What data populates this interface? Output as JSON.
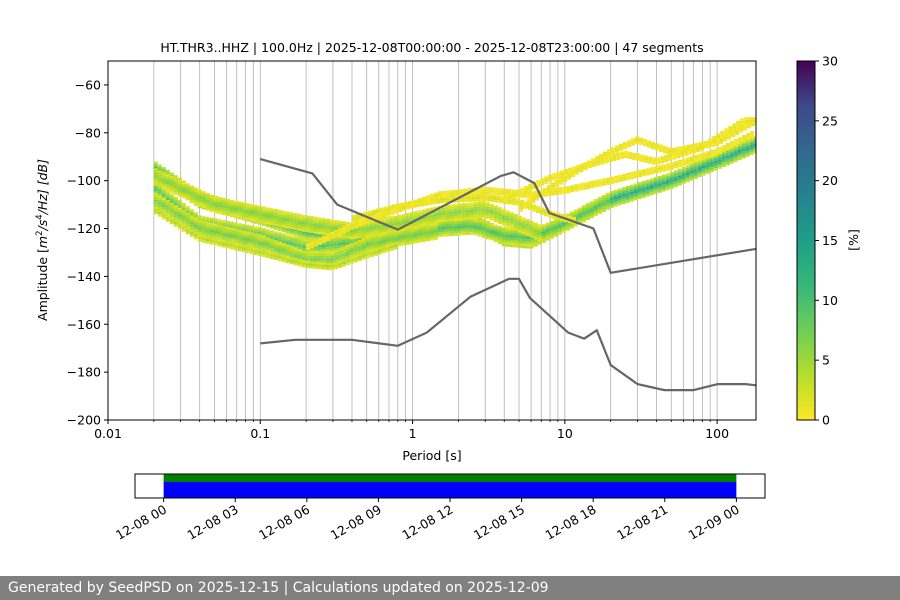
{
  "chart_data": [
    {
      "type": "heatmap",
      "title": "HT.THR3..HHZ | 100.0Hz | 2025-12-08T00:00:00 - 2025-12-08T23:00:00 | 47 segments",
      "xlabel": "Period [s]",
      "ylabel": "Amplitude [m²/s⁴/Hz] [dB]",
      "ylabel_parts": {
        "pre": "Amplitude [",
        "m": "m",
        "sup2": "2",
        "slash_s": "/s",
        "sup4": "4",
        "rest": "/Hz] [dB]"
      },
      "x_scale": "log",
      "xlim": [
        0.01,
        180
      ],
      "ylim": [
        -200,
        -50
      ],
      "x_ticks": [
        {
          "value": 0.01,
          "label": "0.01"
        },
        {
          "value": 0.1,
          "label": "0.1"
        },
        {
          "value": 1,
          "label": "1"
        },
        {
          "value": 10,
          "label": "10"
        },
        {
          "value": 100,
          "label": "100"
        }
      ],
      "y_ticks": [
        {
          "value": -60,
          "label": "−60"
        },
        {
          "value": -80,
          "label": "−80"
        },
        {
          "value": -100,
          "label": "−100"
        },
        {
          "value": -120,
          "label": "−120"
        },
        {
          "value": -140,
          "label": "−140"
        },
        {
          "value": -160,
          "label": "−160"
        },
        {
          "value": -180,
          "label": "−180"
        },
        {
          "value": -200,
          "label": "−200"
        }
      ],
      "grid": "vertical log grid",
      "colorbar": {
        "label": "[%]",
        "range": [
          0,
          30
        ],
        "colormap": "viridis_r",
        "ticks": [
          {
            "value": 0,
            "label": "0"
          },
          {
            "value": 5,
            "label": "5"
          },
          {
            "value": 10,
            "label": "10"
          },
          {
            "value": 15,
            "label": "15"
          },
          {
            "value": 20,
            "label": "20"
          },
          {
            "value": 25,
            "label": "25"
          },
          {
            "value": 30,
            "label": "30"
          }
        ]
      },
      "noise_models": {
        "color": "#666666",
        "high": {
          "name": "NHNM",
          "x": [
            0.1,
            0.22,
            0.32,
            0.8,
            3.8,
            4.6,
            6.3,
            7.9,
            15.4,
            20,
            180
          ],
          "y": [
            -91,
            -97,
            -110,
            -120.5,
            -98,
            -96.5,
            -101,
            -113.5,
            -120,
            -138.5,
            -128.5
          ]
        },
        "low": {
          "name": "NLNM",
          "x": [
            0.1,
            0.17,
            0.4,
            0.8,
            1.24,
            2.4,
            4.3,
            5,
            5.9,
            10.5,
            13.4,
            16.2,
            20,
            30,
            45,
            70,
            101,
            154,
            180
          ],
          "y": [
            -168,
            -166.5,
            -166.5,
            -169,
            -163.5,
            -148.5,
            -141,
            -141,
            -149,
            -163.5,
            -166,
            -162.5,
            -177,
            -185,
            -187.5,
            -187.5,
            -185,
            -185,
            -185.5
          ]
        }
      },
      "psd_density": {
        "period_range": [
          0.02,
          180
        ],
        "percent_range": [
          0,
          30
        ],
        "bands": [
          {
            "name": "dense-main",
            "pct": 13,
            "pts": [
              [
                0.02,
                -95
              ],
              [
                0.04,
                -108
              ],
              [
                0.1,
                -115
              ],
              [
                0.2,
                -121
              ],
              [
                0.4,
                -124
              ],
              [
                0.8,
                -122
              ],
              [
                1.5,
                -118
              ],
              [
                2.5,
                -117
              ],
              [
                4,
                -124
              ],
              [
                6,
                -125
              ],
              [
                10,
                -118
              ],
              [
                20,
                -108
              ],
              [
                50,
                -100
              ],
              [
                100,
                -92
              ],
              [
                180,
                -85
              ]
            ]
          },
          {
            "name": "mid-lower",
            "pct": 9,
            "pts": [
              [
                0.02,
                -103
              ],
              [
                0.04,
                -118
              ],
              [
                0.1,
                -123
              ],
              [
                0.2,
                -128
              ],
              [
                0.4,
                -126
              ],
              [
                0.8,
                -123
              ],
              [
                1.5,
                -120
              ],
              [
                2.5,
                -119
              ],
              [
                4,
                -123
              ],
              [
                6,
                -124
              ],
              [
                10,
                -118
              ],
              [
                20,
                -108
              ]
            ]
          },
          {
            "name": "upper-1",
            "pct": 6,
            "pts": [
              [
                0.02,
                -98
              ],
              [
                0.05,
                -110
              ],
              [
                0.1,
                -114
              ],
              [
                0.2,
                -118
              ],
              [
                0.4,
                -121
              ],
              [
                0.8,
                -118
              ],
              [
                1.5,
                -114
              ],
              [
                3,
                -112
              ],
              [
                5,
                -118
              ],
              [
                7,
                -122
              ]
            ]
          },
          {
            "name": "lower-1",
            "pct": 7,
            "pts": [
              [
                0.02,
                -108
              ],
              [
                0.04,
                -120
              ],
              [
                0.1,
                -126
              ],
              [
                0.2,
                -133
              ],
              [
                0.3,
                -133
              ],
              [
                0.5,
                -127
              ],
              [
                0.8,
                -124
              ],
              [
                1.5,
                -121
              ]
            ]
          },
          {
            "name": "lower-2",
            "pct": 4,
            "pts": [
              [
                0.02,
                -112
              ],
              [
                0.04,
                -124
              ],
              [
                0.1,
                -130
              ],
              [
                0.2,
                -135
              ],
              [
                0.3,
                -136
              ],
              [
                0.5,
                -131
              ],
              [
                0.8,
                -127
              ]
            ]
          },
          {
            "name": "sparse-upper-mid",
            "pct": 2,
            "pts": [
              [
                0.4,
                -116
              ],
              [
                0.8,
                -111
              ],
              [
                1.5,
                -108
              ],
              [
                3,
                -107
              ],
              [
                5,
                -109
              ],
              [
                8,
                -114
              ],
              [
                12,
                -117
              ]
            ]
          },
          {
            "name": "sparse-a",
            "pct": 1,
            "pts": [
              [
                0.2,
                -128
              ],
              [
                0.4,
                -119
              ],
              [
                0.8,
                -112
              ],
              [
                1.5,
                -106
              ],
              [
                3,
                -104
              ],
              [
                6,
                -106
              ],
              [
                10,
                -104
              ],
              [
                20,
                -100
              ],
              [
                50,
                -94
              ],
              [
                100,
                -88
              ],
              [
                180,
                -80
              ]
            ]
          },
          {
            "name": "sparse-b",
            "pct": 1,
            "pts": [
              [
                5,
                -112
              ],
              [
                8,
                -103
              ],
              [
                12,
                -96
              ],
              [
                20,
                -88
              ],
              [
                30,
                -83
              ],
              [
                50,
                -88
              ],
              [
                100,
                -84
              ],
              [
                180,
                -75
              ]
            ]
          },
          {
            "name": "sparse-c",
            "pct": 1,
            "pts": [
              [
                4,
                -108
              ],
              [
                8,
                -99
              ],
              [
                15,
                -93
              ],
              [
                25,
                -89
              ],
              [
                40,
                -92
              ],
              [
                80,
                -86
              ],
              [
                150,
                -75
              ],
              [
                180,
                -75
              ]
            ]
          }
        ]
      }
    },
    {
      "type": "timeline",
      "x_ticks": [
        {
          "label": "12-08 00"
        },
        {
          "label": "12-08 03"
        },
        {
          "label": "12-08 06"
        },
        {
          "label": "12-08 09"
        },
        {
          "label": "12-08 12"
        },
        {
          "label": "12-08 15"
        },
        {
          "label": "12-08 18"
        },
        {
          "label": "12-08 21"
        },
        {
          "label": "12-09 00"
        }
      ],
      "range_hours": [
        -1.2,
        25.2
      ],
      "bars": [
        {
          "name": "data-available",
          "start_hour": 0,
          "end_hour": 24,
          "color": "#008000"
        },
        {
          "name": "psd-used",
          "start_hour": 0,
          "end_hour": 24,
          "color": "#0000ff"
        }
      ]
    }
  ],
  "footer": {
    "text": "Generated by SeedPSD on 2025-12-15 | Calculations updated on 2025-12-09"
  }
}
